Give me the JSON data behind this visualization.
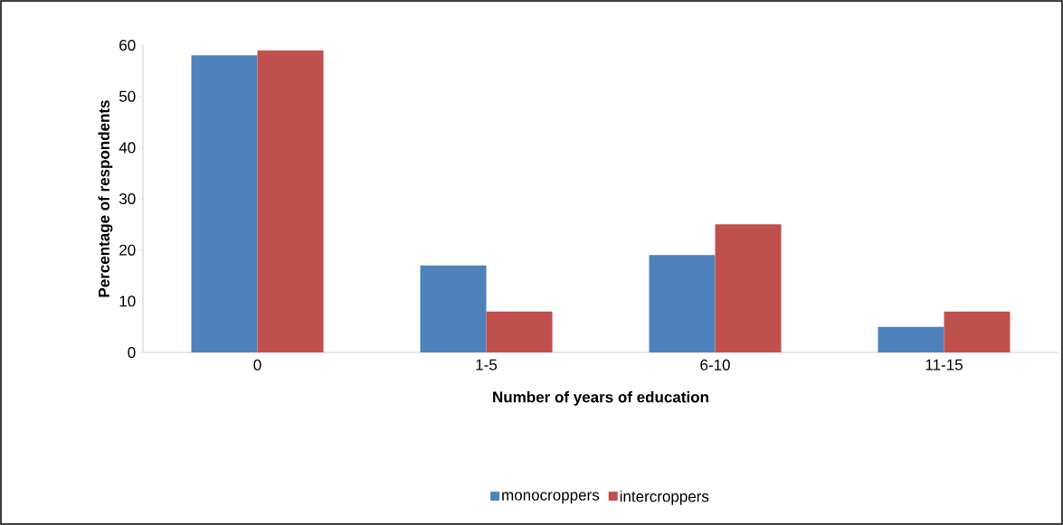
{
  "chart_data": {
    "type": "bar",
    "xlabel": "Number of years of education",
    "ylabel": "Percentage of respondents",
    "categories": [
      "0",
      "1-5",
      "6-10",
      "11-15"
    ],
    "series": [
      {
        "name": "monocroppers",
        "color": "#4f81bd",
        "values": [
          58,
          17,
          19,
          5
        ]
      },
      {
        "name": "intercroppers",
        "color": "#c0504d",
        "values": [
          59,
          8,
          25,
          8
        ]
      }
    ],
    "ylim": [
      0,
      60
    ],
    "yticks": [
      0,
      10,
      20,
      30,
      40,
      50,
      60
    ],
    "grid": false,
    "legend": "bottom"
  }
}
